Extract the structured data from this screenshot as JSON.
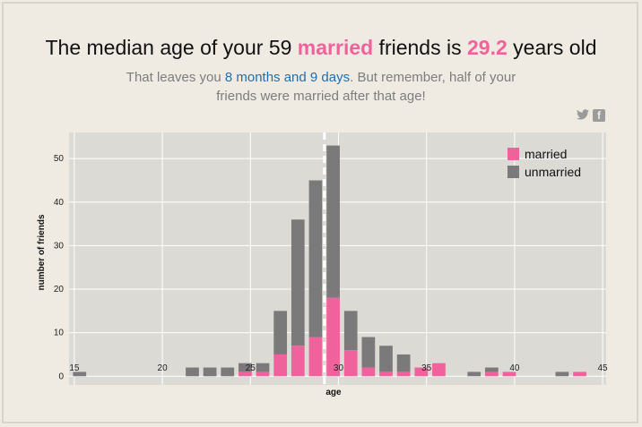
{
  "headline": {
    "pre": "The median age of your 59 ",
    "highlight": "married",
    "mid": " friends is ",
    "age": "29.2",
    "post": " years old"
  },
  "subline": {
    "pre": "That leaves you ",
    "duration": "8 months and 9 days",
    "post": ". But remember, half of your friends were married after that age!"
  },
  "share": {
    "twitter_icon": "twitter-icon",
    "facebook_icon": "facebook-icon",
    "facebook_glyph": "f"
  },
  "colors": {
    "married": "#f0629c",
    "unmarried": "#7a7a7a",
    "plot_bg": "#dcdad5",
    "grid": "#ffffff",
    "median_line": "#ffffff"
  },
  "chart_data": {
    "type": "bar",
    "stacked": true,
    "xlabel": "age",
    "ylabel": "number of friends",
    "xlim": [
      14.7,
      45.2
    ],
    "ylim": [
      -2,
      56
    ],
    "xticks": [
      15,
      20,
      25,
      30,
      35,
      40,
      45
    ],
    "yticks": [
      0,
      10,
      20,
      30,
      40,
      50
    ],
    "grid": true,
    "median": 29.2,
    "legend": {
      "position": "top-right",
      "entries": [
        "married",
        "unmarried"
      ]
    },
    "bars": [
      {
        "x": 15.3,
        "married": 0,
        "total": 1
      },
      {
        "x": 21.7,
        "married": 0,
        "total": 2
      },
      {
        "x": 22.7,
        "married": 0,
        "total": 2
      },
      {
        "x": 23.7,
        "married": 0,
        "total": 2
      },
      {
        "x": 24.7,
        "married": 1,
        "total": 3
      },
      {
        "x": 25.7,
        "married": 1,
        "total": 3
      },
      {
        "x": 26.7,
        "married": 5,
        "total": 15
      },
      {
        "x": 27.7,
        "married": 7,
        "total": 36
      },
      {
        "x": 28.7,
        "married": 9,
        "total": 45
      },
      {
        "x": 29.7,
        "married": 18,
        "total": 53
      },
      {
        "x": 30.7,
        "married": 6,
        "total": 15
      },
      {
        "x": 31.7,
        "married": 2,
        "total": 9
      },
      {
        "x": 32.7,
        "married": 1,
        "total": 7
      },
      {
        "x": 33.7,
        "married": 1,
        "total": 5
      },
      {
        "x": 34.7,
        "married": 2,
        "total": 2
      },
      {
        "x": 35.7,
        "married": 3,
        "total": 3
      },
      {
        "x": 37.7,
        "married": 0,
        "total": 1
      },
      {
        "x": 38.7,
        "married": 1,
        "total": 2
      },
      {
        "x": 39.7,
        "married": 1,
        "total": 1
      },
      {
        "x": 42.7,
        "married": 0,
        "total": 1
      },
      {
        "x": 43.7,
        "married": 1,
        "total": 1
      }
    ]
  }
}
